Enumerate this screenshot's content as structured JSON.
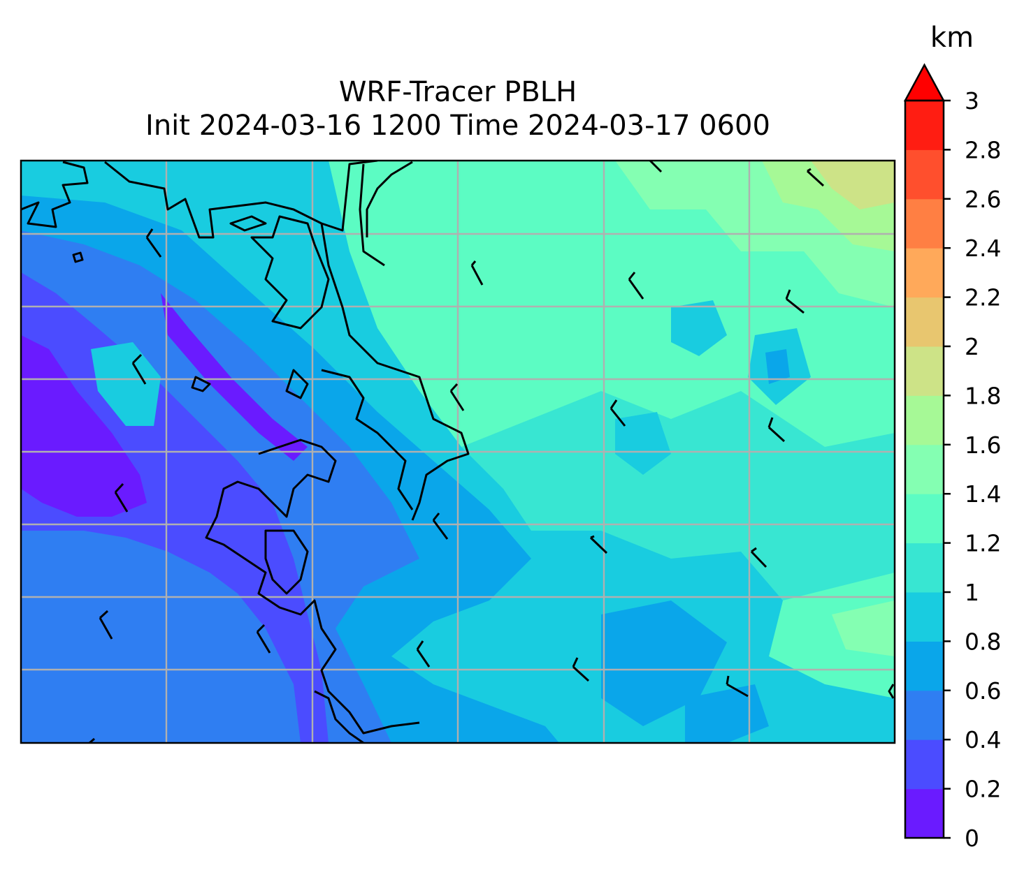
{
  "title": {
    "line1": "WRF-Tracer PBLH",
    "line2": "Init 2024-03-16 1200 Time 2024-03-17 0600"
  },
  "colorbar": {
    "unit": "km",
    "min": 0,
    "max": 3,
    "extend": "max",
    "extend_color": "#ff0000",
    "tick_labels": [
      "0",
      "0.2",
      "0.4",
      "0.6",
      "0.8",
      "1",
      "1.2",
      "1.4",
      "1.6",
      "1.8",
      "2",
      "2.2",
      "2.4",
      "2.6",
      "2.8",
      "3"
    ],
    "levels": [
      {
        "from": 0.0,
        "to": 0.2,
        "color": "#6a1bff"
      },
      {
        "from": 0.2,
        "to": 0.4,
        "color": "#4b4cff"
      },
      {
        "from": 0.4,
        "to": 0.6,
        "color": "#2f7ef2"
      },
      {
        "from": 0.6,
        "to": 0.8,
        "color": "#0aa6ea"
      },
      {
        "from": 0.8,
        "to": 1.0,
        "color": "#19cce0"
      },
      {
        "from": 1.0,
        "to": 1.2,
        "color": "#38e6d2"
      },
      {
        "from": 1.2,
        "to": 1.4,
        "color": "#5cfcc3"
      },
      {
        "from": 1.4,
        "to": 1.6,
        "color": "#84ffb2"
      },
      {
        "from": 1.6,
        "to": 1.8,
        "color": "#a6f996"
      },
      {
        "from": 1.8,
        "to": 2.0,
        "color": "#cde387"
      },
      {
        "from": 2.0,
        "to": 2.2,
        "color": "#e8c66f"
      },
      {
        "from": 2.2,
        "to": 2.4,
        "color": "#ffa95a"
      },
      {
        "from": 2.4,
        "to": 2.6,
        "color": "#ff7f43"
      },
      {
        "from": 2.6,
        "to": 2.8,
        "color": "#ff4f2d"
      },
      {
        "from": 2.8,
        "to": 3.0,
        "color": "#ff1d12"
      }
    ]
  },
  "map": {
    "gridlines": true,
    "gridline_color": "#b0b0b0",
    "coastline_color": "#000000",
    "wind_barb_color": "#000000"
  }
}
